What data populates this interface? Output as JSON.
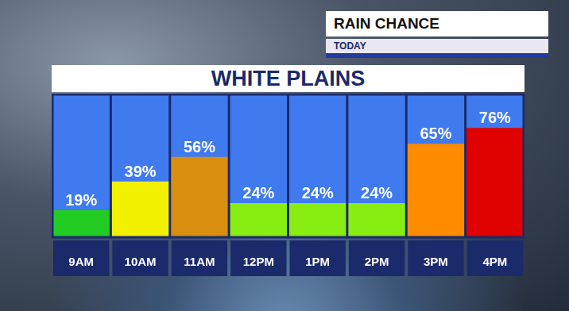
{
  "header": {
    "title": "RAIN CHANCE",
    "subtitle": "TODAY"
  },
  "chart_data": {
    "type": "bar",
    "title": "WHITE PLAINS",
    "categories": [
      "9AM",
      "10AM",
      "11AM",
      "12PM",
      "1PM",
      "2PM",
      "3PM",
      "4PM"
    ],
    "values": [
      19,
      39,
      56,
      24,
      24,
      24,
      65,
      76
    ],
    "value_labels": [
      "19%",
      "39%",
      "56%",
      "24%",
      "24%",
      "24%",
      "65%",
      "76%"
    ],
    "colors": [
      "#22cc22",
      "#f2f200",
      "#d98e10",
      "#88ee11",
      "#88ee11",
      "#88ee11",
      "#ff8c00",
      "#e00000"
    ],
    "ylim": [
      0,
      100
    ],
    "data_labels": true,
    "tick_labels": "x",
    "grid": false
  }
}
